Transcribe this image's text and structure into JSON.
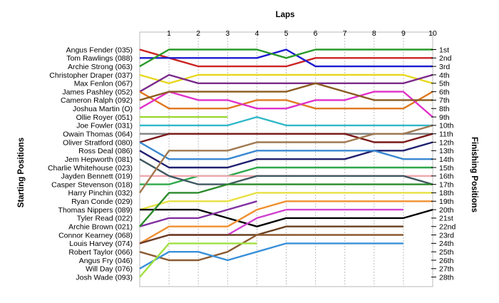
{
  "chart_data": {
    "type": "line",
    "title": "Laps",
    "xlabel": "Laps",
    "ylabel_left": "Starting Positions",
    "ylabel_right": "Finishing Positions",
    "x": [
      0,
      1,
      2,
      3,
      4,
      5,
      6,
      7,
      8,
      9,
      10
    ],
    "x_tick_labels": [
      "1",
      "2",
      "3",
      "4",
      "5",
      "6",
      "7",
      "8",
      "9",
      "10"
    ],
    "y_range": [
      1,
      28
    ],
    "drivers": [
      "Angus Fender (035)",
      "Tom Rawlings (088)",
      "Archie Strong (063)",
      "Christopher Draper (037)",
      "Max Fenlon (067)",
      "James Pashley (052)",
      "Cameron Ralph (092)",
      "Joshua Martin (O)",
      "Ollie Royer (051)",
      "Joe Fowler (031)",
      "Owain Thomas (064)",
      "Oliver Stratford (080)",
      "Ross Deal (086)",
      "Jem Hepworth (081)",
      "Charlie Whitehouse (023)",
      "Jayden Bennett (019)",
      "Casper Stevenson (018)",
      "Harry Pinchin (032)",
      "Ryan Conde (029)",
      "Thomas Nippers (089)",
      "Tyler Read (022)",
      "Archie Brown (021)",
      "Connor Kearney (068)",
      "Louis Harvey (074)",
      "Robert Taylor (066)",
      "Angus Fry (046)",
      "Will Day (076)",
      "Josh Wade (093)"
    ],
    "finishing_positions": [
      "1st",
      "2nd",
      "3rd",
      "4th",
      "5th",
      "6th",
      "7th",
      "8th",
      "9th",
      "10th",
      "11th",
      "12th",
      "13th",
      "14th",
      "15th",
      "16th",
      "17th",
      "18th",
      "19th",
      "20th",
      "21st",
      "22nd",
      "23rd",
      "24th",
      "25th",
      "26th",
      "27th",
      "28th"
    ],
    "series": [
      {
        "color": "#cc2222",
        "values": [
          1,
          2,
          3,
          3,
          3,
          3,
          2,
          2,
          2,
          2,
          2
        ]
      },
      {
        "color": "#1a1ad0",
        "values": [
          2,
          2,
          2,
          2,
          2,
          1,
          3,
          3,
          3,
          3,
          3
        ]
      },
      {
        "color": "#2a9a2a",
        "values": [
          3,
          1,
          1,
          1,
          1,
          2,
          1,
          1,
          1,
          1,
          1
        ]
      },
      {
        "color": "#e8d820",
        "values": [
          4,
          5,
          4,
          4,
          4,
          4,
          4,
          4,
          4,
          4,
          5
        ]
      },
      {
        "color": "#7a2a8a",
        "values": [
          6,
          4,
          5,
          5,
          5,
          5,
          5,
          5,
          5,
          5,
          4
        ]
      },
      {
        "color": "#e07820",
        "values": [
          6,
          8,
          8,
          8,
          7,
          7,
          8,
          8,
          8,
          8,
          6
        ]
      },
      {
        "color": "#e030c8",
        "values": [
          8,
          6,
          7,
          7,
          8,
          8,
          7,
          7,
          6,
          6,
          9
        ]
      },
      {
        "color": "#8a5a20",
        "values": [
          7,
          6,
          6,
          6,
          6,
          6,
          5,
          6,
          7,
          7,
          7
        ]
      },
      {
        "color": "#9ad830",
        "values": [
          9,
          9,
          9,
          9,
          null,
          null,
          null,
          null,
          null,
          null,
          null
        ]
      },
      {
        "color": "#30b8c8",
        "values": [
          10,
          10,
          10,
          10,
          9,
          10,
          10,
          10,
          10,
          10,
          10
        ]
      },
      {
        "color": "#808080",
        "values": [
          11,
          11,
          11,
          11,
          11,
          11,
          11,
          11,
          11,
          11,
          11
        ]
      },
      {
        "color": "#7a1818",
        "values": [
          12,
          11,
          11,
          11,
          11,
          11,
          11,
          11,
          12,
          12,
          11
        ]
      },
      {
        "color": "#202070",
        "values": [
          13,
          15,
          15,
          15,
          14,
          14,
          14,
          14,
          13,
          13,
          12
        ]
      },
      {
        "color": "#3a88d0",
        "values": [
          12,
          14,
          14,
          14,
          13,
          13,
          13,
          13,
          13,
          14,
          14
        ]
      },
      {
        "color": "#2fa84a",
        "values": [
          17,
          17,
          16,
          16,
          15,
          15,
          15,
          15,
          15,
          15,
          15
        ]
      },
      {
        "color": "#f0a8b0",
        "values": [
          16,
          16,
          16,
          16,
          16,
          16,
          16,
          16,
          16,
          16,
          16
        ]
      },
      {
        "color": "#405860",
        "values": [
          14,
          16,
          17,
          17,
          16,
          16,
          16,
          16,
          16,
          16,
          17
        ]
      },
      {
        "color": "#a07850",
        "values": [
          18,
          13,
          13,
          13,
          12,
          12,
          12,
          12,
          11,
          11,
          10
        ]
      },
      {
        "color": "#e8e040",
        "values": [
          20,
          19,
          19,
          19,
          18,
          18,
          18,
          18,
          18,
          18,
          18
        ]
      },
      {
        "color": "#000000",
        "values": [
          20,
          20,
          20,
          21,
          22,
          21,
          21,
          21,
          21,
          21,
          20
        ]
      },
      {
        "color": "#8030a0",
        "values": [
          22,
          21,
          21,
          20,
          19,
          null,
          null,
          null,
          null,
          null,
          null
        ]
      },
      {
        "color": "#f09030",
        "values": [
          24,
          22,
          22,
          22,
          20,
          19,
          19,
          19,
          19,
          19,
          19
        ]
      },
      {
        "color": "#d040d0",
        "values": [
          24,
          23,
          23,
          23,
          21,
          20,
          20,
          20,
          20,
          20,
          null
        ]
      },
      {
        "color": "#6a4020",
        "values": [
          24,
          23,
          23,
          23,
          23,
          22,
          22,
          22,
          22,
          22,
          null
        ]
      },
      {
        "color": "#8c5a30",
        "values": [
          25,
          26,
          26,
          25,
          23,
          23,
          23,
          23,
          23,
          23,
          null
        ]
      },
      {
        "color": "#3a90d8",
        "values": [
          27,
          25,
          25,
          26,
          25,
          24,
          24,
          24,
          24,
          24,
          null
        ]
      },
      {
        "color": "#a0e040",
        "values": [
          28,
          24,
          24,
          24,
          24,
          null,
          null,
          null,
          null,
          null,
          null
        ]
      },
      {
        "color": "#2a8a2a",
        "values": [
          22,
          18,
          18,
          17,
          17,
          17,
          17,
          17,
          17,
          17,
          17
        ]
      }
    ],
    "grid": true,
    "legend": "none"
  }
}
